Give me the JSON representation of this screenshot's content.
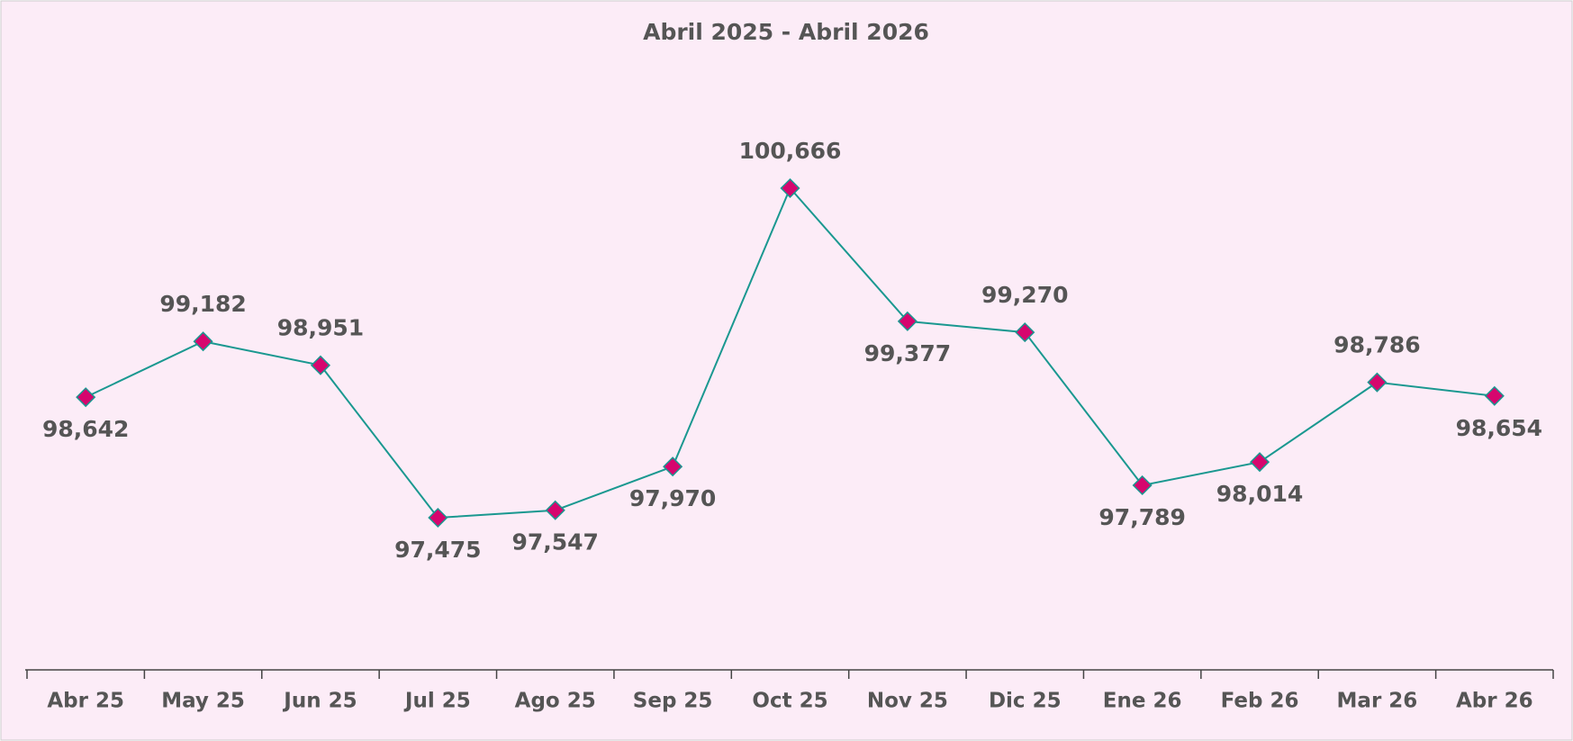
{
  "chart_data": {
    "type": "line",
    "title": "Abril 2025 - Abril 2026",
    "categories": [
      "Abr 25",
      "May 25",
      "Jun 25",
      "Jul 25",
      "Ago 25",
      "Sep 25",
      "Oct 25",
      "Nov 25",
      "Dic 25",
      "Ene 26",
      "Feb 26",
      "Mar 26",
      "Abr 26"
    ],
    "values": [
      98642,
      99182,
      98951,
      97475,
      97547,
      97970,
      100666,
      99377,
      99270,
      97789,
      98014,
      98786,
      98654
    ],
    "value_labels": [
      "98,642",
      "99,182",
      "98,951",
      "97,475",
      "97,547",
      "97,970",
      "100,666",
      "99,377",
      "99,270",
      "97,789",
      "98,014",
      "98,786",
      "98,654"
    ],
    "color": "#1a9890",
    "marker_color": "#d6066e"
  }
}
